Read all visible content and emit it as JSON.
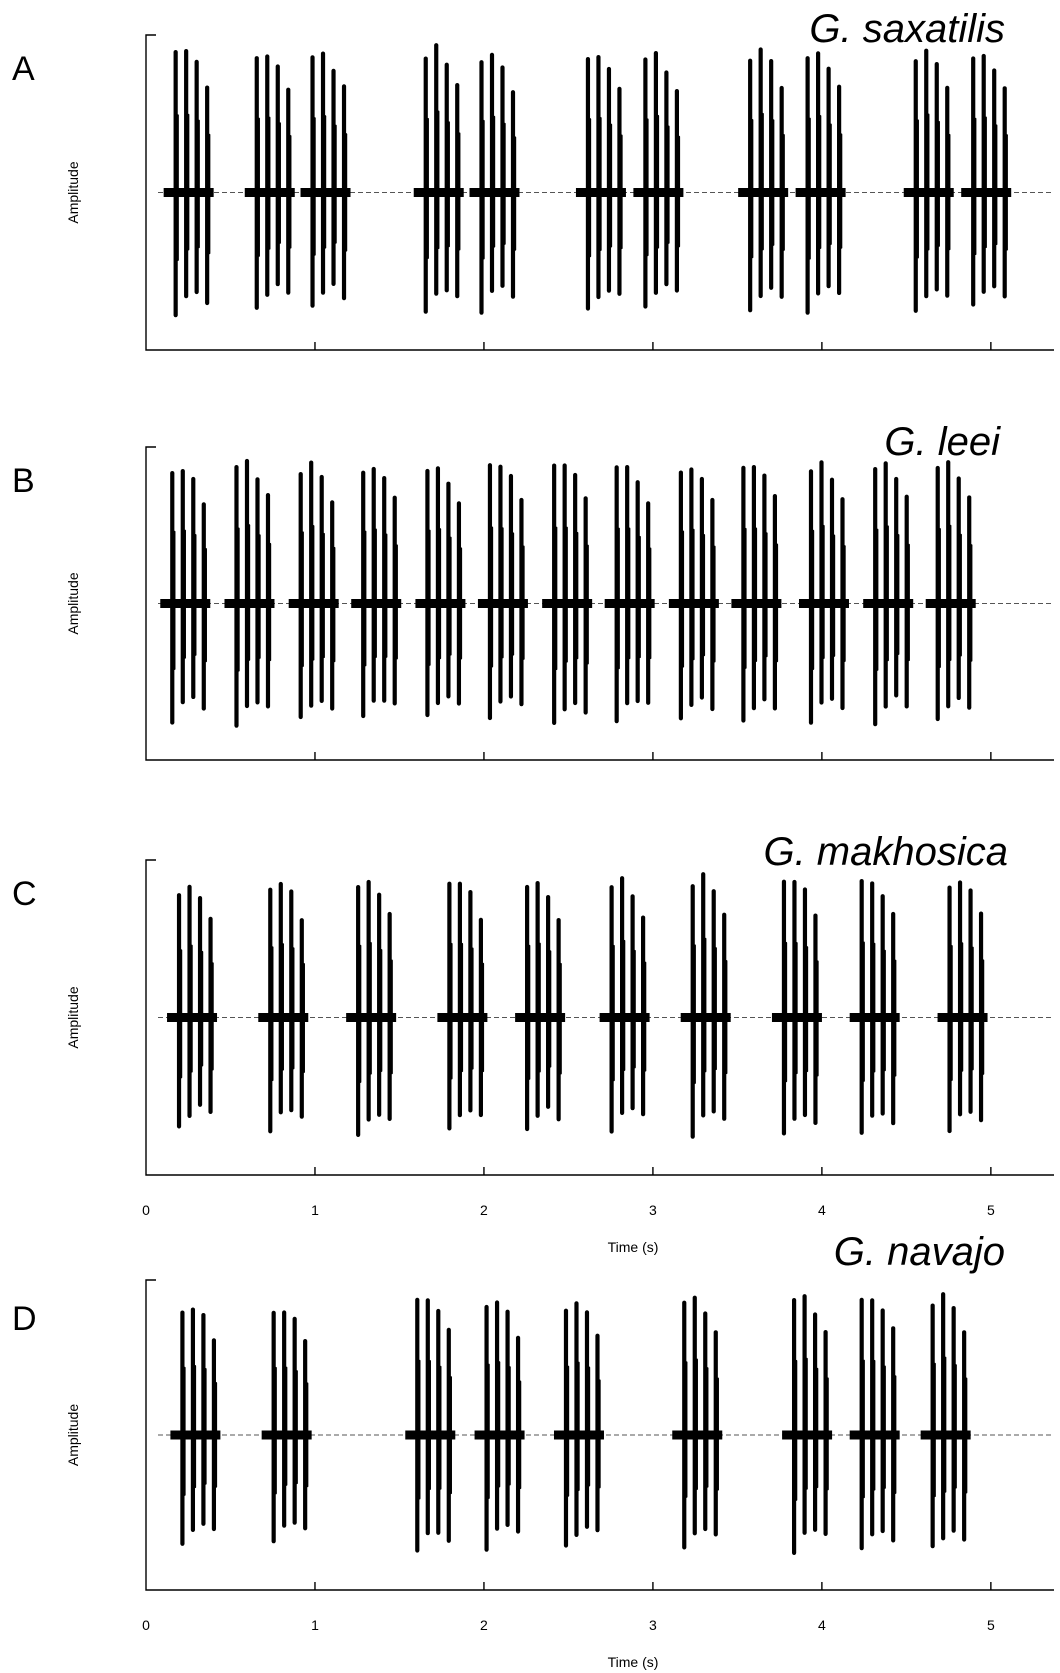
{
  "chart_data": [
    {
      "type": "waveform",
      "panel_label": "A",
      "title": "G. saxatilis",
      "ylabel": "Amplitude",
      "xlabel": "",
      "xlim": [
        0,
        5
      ],
      "tick_labels": [],
      "pulses_per_chirp": 4,
      "chirp_onsets_s": [
        0.14,
        0.62,
        0.95,
        1.62,
        1.95,
        2.58,
        2.92,
        3.54,
        3.88,
        4.52,
        4.86
      ],
      "chirp_amplitudes": [
        1.0,
        0.95,
        0.95,
        0.98,
        0.95,
        0.96,
        0.94,
        0.97,
        0.96,
        0.95,
        0.95
      ]
    },
    {
      "type": "waveform",
      "panel_label": "B",
      "title": "G. leei",
      "ylabel": "Amplitude",
      "xlabel": "",
      "xlim": [
        0,
        5
      ],
      "tick_labels": [],
      "pulses_per_chirp": 4,
      "chirp_onsets_s": [
        0.12,
        0.5,
        0.88,
        1.25,
        1.63,
        2.0,
        2.38,
        2.75,
        3.13,
        3.5,
        3.9,
        4.28,
        4.65
      ],
      "chirp_amplitudes": [
        0.95,
        0.98,
        0.96,
        0.96,
        0.95,
        0.97,
        0.99,
        0.96,
        0.96,
        0.97,
        0.95,
        0.96,
        0.96
      ]
    },
    {
      "type": "waveform",
      "panel_label": "C",
      "title": "G. makhosica",
      "ylabel": "Amplitude",
      "xlabel": "Time (s)",
      "xlim": [
        0,
        5
      ],
      "tick_labels": [
        "0",
        "1",
        "2",
        "3",
        "4",
        "5"
      ],
      "pulses_per_chirp": 4,
      "chirp_onsets_s": [
        0.16,
        0.7,
        1.22,
        1.76,
        2.22,
        2.72,
        3.2,
        3.74,
        4.2,
        4.72
      ],
      "chirp_amplitudes": [
        0.9,
        0.93,
        0.95,
        0.93,
        0.93,
        0.93,
        0.96,
        0.95,
        0.95,
        0.94
      ]
    },
    {
      "type": "waveform",
      "panel_label": "D",
      "title": "G. navajo",
      "ylabel": "Amplitude",
      "xlabel": "Time (s)",
      "xlim": [
        0,
        5
      ],
      "tick_labels": [
        "0",
        "1",
        "2",
        "3",
        "4",
        "5"
      ],
      "pulses_per_chirp": 4,
      "chirp_onsets_s": [
        0.18,
        0.72,
        1.57,
        1.98,
        2.45,
        3.15,
        3.8,
        4.2,
        4.62
      ],
      "chirp_amplitudes": [
        0.9,
        0.88,
        0.97,
        0.93,
        0.93,
        0.96,
        0.97,
        0.97,
        0.96
      ]
    }
  ]
}
